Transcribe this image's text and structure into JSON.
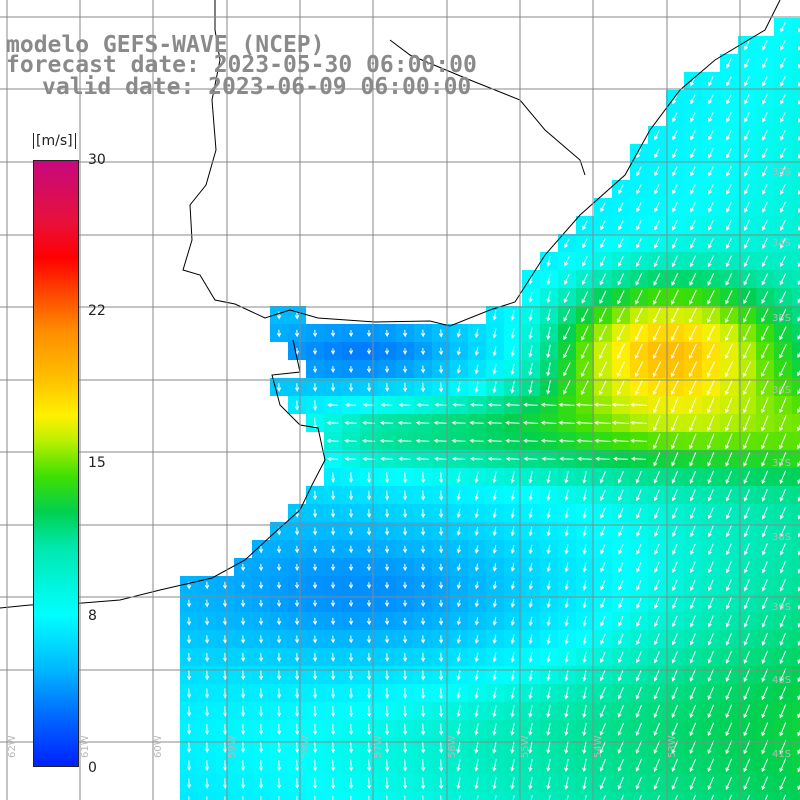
{
  "title": {
    "line1": "modelo GEFS-WAVE (NCEP)",
    "line2": "forecast date: 2023-05-30 06:00:00",
    "line3": "valid date: 2023-06-09 06:00:00"
  },
  "colorbar": {
    "unit": "[m/s]",
    "min": 0,
    "max": 30,
    "ticks": [
      "30",
      "22",
      "15",
      "8",
      "0"
    ],
    "tick_values": [
      30,
      22,
      15,
      8,
      0
    ]
  },
  "map": {
    "variable": "wind speed and direction",
    "lat_labels": [
      "33S",
      "34S",
      "35S",
      "36S",
      "37S",
      "38S",
      "39S",
      "40S",
      "41S"
    ],
    "lon_labels": [
      "62W",
      "61W",
      "60W",
      "59W",
      "58W",
      "57W",
      "56W",
      "55W",
      "54W",
      "53W"
    ],
    "grid": true,
    "colors": {
      "land": "#ffffff",
      "coast": "#000000",
      "grid": "#888888",
      "arrows": "#ffffff"
    }
  }
}
